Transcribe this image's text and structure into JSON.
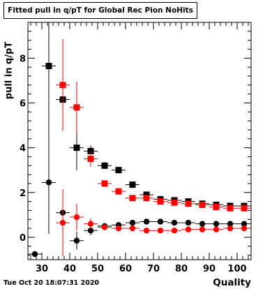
{
  "chart_data": {
    "type": "scatter",
    "title": "Fitted pull in q/pT for Global Rec Pion NoHits",
    "xlabel": "Quality",
    "ylabel": "pull in q/pT",
    "xlim": [
      25,
      105
    ],
    "ylim": [
      -1.0,
      9.6
    ],
    "xticks": [
      30,
      40,
      50,
      60,
      70,
      80,
      90,
      100
    ],
    "yticks": [
      0,
      2,
      4,
      6,
      8
    ],
    "grid": false,
    "series": [
      {
        "color": "#000000",
        "marker": "square",
        "x": [
          32.5,
          37.5,
          42.5,
          47.5,
          52.5,
          57.5,
          62.5,
          67.5,
          72.5,
          77.5,
          82.5,
          87.5,
          92.5,
          97.5,
          102.5
        ],
        "y": [
          7.65,
          6.15,
          4.0,
          3.85,
          3.2,
          3.0,
          2.35,
          1.9,
          1.7,
          1.65,
          1.6,
          1.5,
          1.45,
          1.4,
          1.4
        ],
        "yerr": [
          7.4,
          0.3,
          1.0,
          0.25,
          0.15,
          0.12,
          0.08,
          0.06,
          0.05,
          0.05,
          0.04,
          0.04,
          0.04,
          0.04,
          0.04
        ]
      },
      {
        "color": "#ff0000",
        "marker": "square",
        "x": [
          37.5,
          42.5,
          47.5,
          52.5,
          57.5,
          62.5,
          67.5,
          72.5,
          77.5,
          82.5,
          87.5,
          92.5,
          97.5,
          102.5
        ],
        "y": [
          6.8,
          5.8,
          3.5,
          2.4,
          2.05,
          1.75,
          1.75,
          1.6,
          1.55,
          1.5,
          1.45,
          1.35,
          1.3,
          1.3
        ],
        "yerr": [
          2.05,
          1.15,
          0.35,
          0.15,
          0.12,
          0.08,
          0.06,
          0.05,
          0.05,
          0.04,
          0.04,
          0.04,
          0.04,
          0.04
        ]
      },
      {
        "color": "#000000",
        "marker": "circle",
        "x": [
          27.5,
          32.5,
          37.5,
          42.5,
          47.5,
          52.5,
          57.5,
          62.5,
          67.5,
          72.5,
          77.5,
          82.5,
          87.5,
          92.5,
          97.5,
          102.5
        ],
        "y": [
          -0.75,
          2.45,
          1.1,
          -0.15,
          0.3,
          0.5,
          0.55,
          0.65,
          0.7,
          0.7,
          0.65,
          0.65,
          0.6,
          0.6,
          0.6,
          0.6
        ],
        "yerr": [
          0.1,
          2.3,
          0.6,
          0.4,
          0.2,
          0.1,
          0.08,
          0.06,
          0.05,
          0.05,
          0.04,
          0.04,
          0.04,
          0.04,
          0.04,
          0.04
        ]
      },
      {
        "color": "#ff0000",
        "marker": "circle",
        "x": [
          37.5,
          42.5,
          47.5,
          52.5,
          57.5,
          62.5,
          67.5,
          72.5,
          77.5,
          82.5,
          87.5,
          92.5,
          97.5,
          102.5
        ],
        "y": [
          0.65,
          0.9,
          0.6,
          0.45,
          0.4,
          0.4,
          0.3,
          0.3,
          0.3,
          0.35,
          0.35,
          0.35,
          0.4,
          0.4
        ],
        "yerr": [
          1.5,
          0.6,
          0.25,
          0.1,
          0.08,
          0.06,
          0.05,
          0.05,
          0.04,
          0.04,
          0.04,
          0.04,
          0.04,
          0.04
        ]
      }
    ]
  },
  "footer": {
    "timestamp": "Tue Oct 20 18:07:31 2020"
  }
}
